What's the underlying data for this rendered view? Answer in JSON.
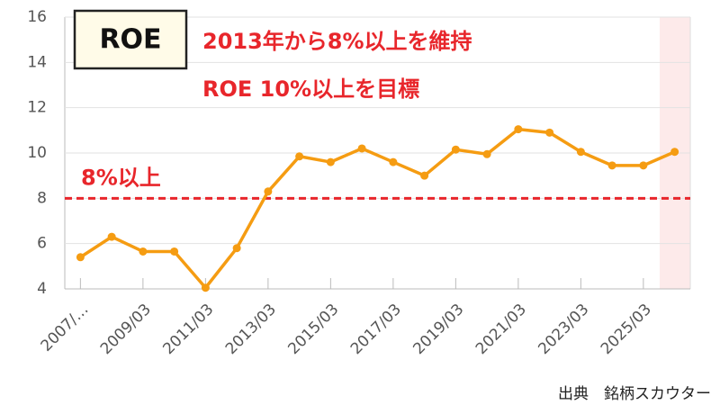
{
  "chart_data": {
    "type": "line",
    "badge": "ROE",
    "annotations": [
      "2013年から8%以上を維持",
      "ROE  10%以上を目標"
    ],
    "source": "出典　銘柄スカウター",
    "categories": [
      "2007/…",
      null,
      "2009/03",
      null,
      "2011/03",
      null,
      "2013/03",
      null,
      "2015/03",
      null,
      "2017/03",
      null,
      "2019/03",
      null,
      "2021/03",
      null,
      "2023/03",
      null,
      "2025/03",
      null
    ],
    "series": [
      {
        "name": "ROE",
        "color": "#f59c12",
        "values": [
          5.4,
          6.3,
          5.65,
          5.65,
          4.05,
          5.8,
          8.3,
          9.85,
          9.6,
          10.2,
          9.6,
          9.0,
          10.15,
          9.95,
          11.05,
          10.9,
          10.05,
          9.45,
          9.45,
          10.05
        ]
      }
    ],
    "reference_lines": [
      {
        "value": 8,
        "label": "8%以上",
        "color": "#e8262b"
      }
    ],
    "ylim": [
      4,
      16
    ],
    "yticks": [
      4,
      6,
      8,
      10,
      12,
      14,
      16
    ],
    "grid": true
  }
}
